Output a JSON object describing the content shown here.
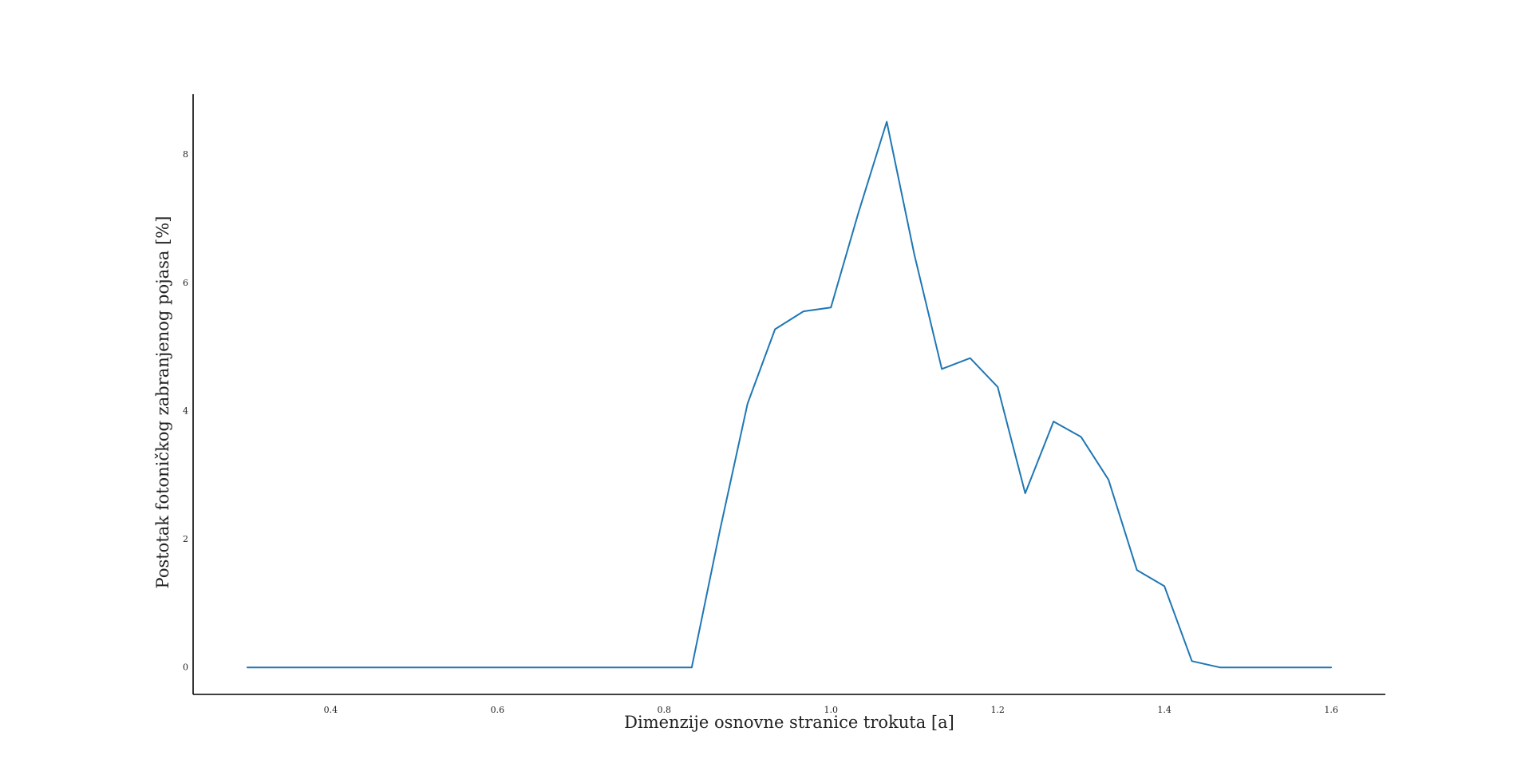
{
  "chart_data": {
    "type": "line",
    "title": "",
    "xlabel": "Dimenzije osnovne stranice trokuta [a]",
    "ylabel": "Postotak fotoničkog zabranjenog pojasa [%]",
    "xlim": [
      0.235,
      1.665
    ],
    "ylim": [
      -0.42,
      8.95
    ],
    "grid": false,
    "legend": "none",
    "x_ticks": [
      0.4,
      0.6,
      0.8,
      1.0,
      1.2,
      1.4,
      1.6
    ],
    "x_tick_labels": [
      "0.4",
      "0.6",
      "0.8",
      "1.0",
      "1.2",
      "1.4",
      "1.6"
    ],
    "y_ticks": [
      0,
      2,
      4,
      6,
      8
    ],
    "y_tick_labels": [
      "0",
      "2",
      "4",
      "6",
      "8"
    ],
    "line_color": "#1f77b4",
    "axis_color": "#000000",
    "series": [
      {
        "x": [
          0.3,
          0.333,
          0.367,
          0.4,
          0.433,
          0.467,
          0.5,
          0.533,
          0.567,
          0.6,
          0.633,
          0.667,
          0.7,
          0.733,
          0.767,
          0.8,
          0.833,
          0.867,
          0.9,
          0.933,
          0.967,
          1.0,
          1.033,
          1.067,
          1.1,
          1.133,
          1.167,
          1.2,
          1.233,
          1.267,
          1.3,
          1.333,
          1.367,
          1.4,
          1.433,
          1.467,
          1.5,
          1.533,
          1.567,
          1.6
        ],
        "values": [
          0.0,
          0.0,
          0.0,
          0.0,
          0.0,
          0.0,
          0.0,
          0.0,
          0.0,
          0.0,
          0.0,
          0.0,
          0.0,
          0.0,
          0.0,
          0.0,
          0.0,
          2.15,
          4.12,
          5.28,
          5.56,
          5.62,
          7.1,
          8.52,
          6.45,
          4.66,
          4.83,
          4.38,
          2.72,
          3.84,
          3.6,
          2.93,
          1.52,
          1.27,
          0.1,
          0.0,
          0.0,
          0.0,
          0.0,
          0.0
        ]
      }
    ]
  }
}
